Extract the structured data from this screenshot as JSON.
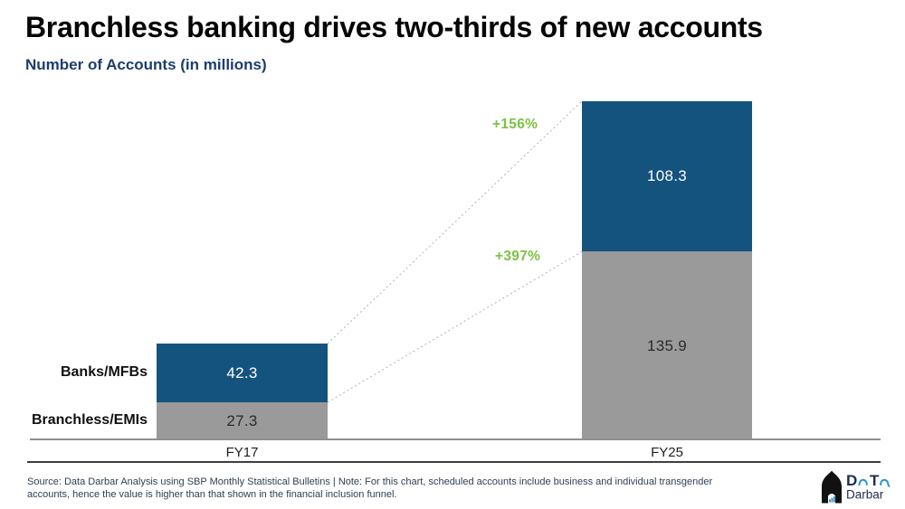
{
  "header": {
    "title": "Branchless banking drives two-thirds of new accounts",
    "subtitle": "Number of Accounts (in millions)"
  },
  "chart_data": {
    "type": "bar",
    "stacked": true,
    "orientation": "vertical",
    "title": "Number of Accounts (in millions)",
    "categories": [
      "FY17",
      "FY25"
    ],
    "series": [
      {
        "name": "Banks/MFBs",
        "values": [
          42.3,
          108.3
        ],
        "color": "#15537F",
        "label_color": "#ffffff"
      },
      {
        "name": "Branchless/EMIs",
        "values": [
          27.3,
          135.9
        ],
        "color": "#9A9A9A",
        "label_color": "#2b2b2b"
      }
    ],
    "totals": [
      69.6,
      244.2
    ],
    "annotations": [
      {
        "label": "+156%",
        "series": "Banks/MFBs",
        "from": 42.3,
        "to": 108.3,
        "color": "#7CC242"
      },
      {
        "label": "+397%",
        "series": "Branchless/EMIs",
        "from": 27.3,
        "to": 135.9,
        "color": "#7CC242"
      }
    ],
    "value_labels_shown": true,
    "grid": false,
    "legend_position": "left of FY17 bar",
    "connector_style": "dotted gray lines linking segment tops between bars"
  },
  "footer": {
    "source_line1": "Source: Data Darbar Analysis using SBP Monthly Statistical Bulletins | Note: For this chart, scheduled accounts include business and individual transgender",
    "source_line2": "accounts, hence the value is higher than that shown in the financial inclusion funnel.",
    "logo": {
      "letter_d": "D",
      "letter_t": "T",
      "wordmark": "Darbar",
      "brand": "Data Darbar"
    }
  },
  "colors": {
    "banks_blue": "#15537F",
    "branchless_gray": "#9A9A9A",
    "growth_green": "#7CC242",
    "subtitle_navy": "#1c3d6d",
    "logo_blue": "#2196D3"
  }
}
